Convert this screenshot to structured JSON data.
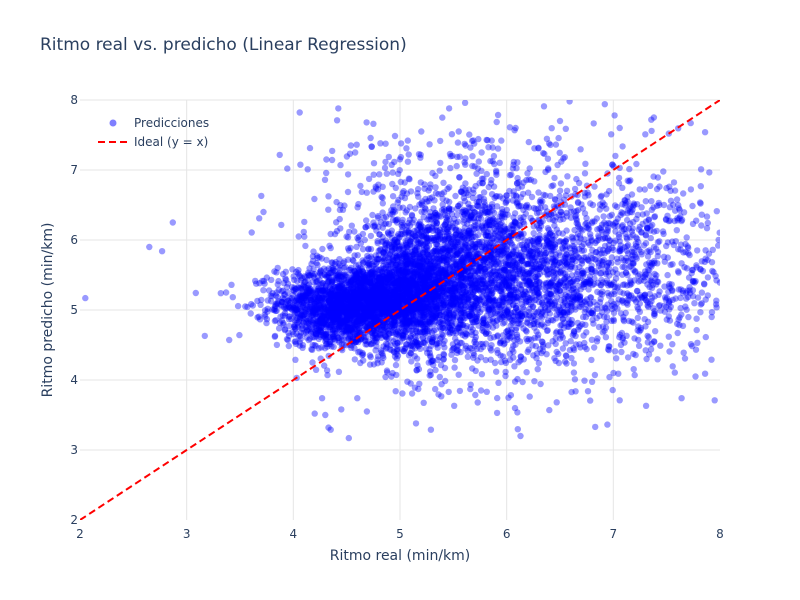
{
  "chart_data": {
    "type": "scatter",
    "title": "Ritmo real vs. predicho (Linear Regression)",
    "xlabel": "Ritmo real (min/km)",
    "ylabel": "Ritmo predicho (min/km)",
    "xlim": [
      2,
      8
    ],
    "ylim": [
      2,
      8
    ],
    "x_ticks": [
      "2",
      "3",
      "4",
      "5",
      "6",
      "7",
      "8"
    ],
    "y_ticks": [
      "2",
      "3",
      "4",
      "5",
      "6",
      "7",
      "8"
    ],
    "grid": true,
    "legend_position": "top-left",
    "series": [
      {
        "name": "Predicciones",
        "kind": "markers",
        "color": "#0000ff",
        "opacity": 0.4,
        "points": [
          [
            2.05,
            5.17
          ],
          [
            2.65,
            5.9
          ],
          [
            2.77,
            5.84
          ],
          [
            2.87,
            6.25
          ],
          [
            3.17,
            4.63
          ],
          [
            3.32,
            5.24
          ],
          [
            3.37,
            5.25
          ],
          [
            3.42,
            5.36
          ],
          [
            3.55,
            5.05
          ],
          [
            3.6,
            4.95
          ],
          [
            3.68,
            6.31
          ],
          [
            3.7,
            6.63
          ],
          [
            3.72,
            6.4
          ],
          [
            3.96,
            4.63
          ],
          [
            4.05,
            6.05
          ],
          [
            4.18,
            4.25
          ],
          [
            4.2,
            3.52
          ],
          [
            4.27,
            3.74
          ],
          [
            4.31,
            7.15
          ],
          [
            4.32,
            4.07
          ],
          [
            4.3,
            3.5
          ],
          [
            4.33,
            3.32
          ],
          [
            4.35,
            3.29
          ],
          [
            4.41,
            7.71
          ],
          [
            4.45,
            3.58
          ],
          [
            4.52,
            3.17
          ],
          [
            4.54,
            7.35
          ],
          [
            4.58,
            7.25
          ],
          [
            4.6,
            3.74
          ],
          [
            4.69,
            3.55
          ],
          [
            4.72,
            4.22
          ],
          [
            4.79,
            4.24
          ],
          [
            4.88,
            4.11
          ],
          [
            4.96,
            3.84
          ],
          [
            5.01,
            7.38
          ],
          [
            5.06,
            7.31
          ],
          [
            5.1,
            3.95
          ],
          [
            5.14,
            3.89
          ],
          [
            5.15,
            3.38
          ],
          [
            5.2,
            7.55
          ],
          [
            5.29,
            3.29
          ],
          [
            5.33,
            3.87
          ],
          [
            5.39,
            3.94
          ],
          [
            5.46,
            7.88
          ],
          [
            5.55,
            7.55
          ],
          [
            5.61,
            7.96
          ],
          [
            5.66,
            7.32
          ],
          [
            5.71,
            4.13
          ],
          [
            5.76,
            3.85
          ],
          [
            5.86,
            7.42
          ],
          [
            5.91,
            3.53
          ],
          [
            5.95,
            7.42
          ],
          [
            6.03,
            7.61
          ],
          [
            6.13,
            3.2
          ],
          [
            6.26,
            7.31
          ],
          [
            6.35,
            7.91
          ],
          [
            6.4,
            3.57
          ],
          [
            6.5,
            7.7
          ],
          [
            6.59,
            7.98
          ],
          [
            6.64,
            4.01
          ],
          [
            6.73,
            3.99
          ],
          [
            6.83,
            3.33
          ],
          [
            6.92,
            7.94
          ],
          [
            6.98,
            7.51
          ],
          [
            7.06,
            7.6
          ],
          [
            7.2,
            4.07
          ],
          [
            7.3,
            7.51
          ],
          [
            7.38,
            7.75
          ],
          [
            7.44,
            4.49
          ],
          [
            7.52,
            7.52
          ],
          [
            7.64,
            3.74
          ],
          [
            7.77,
            4.05
          ],
          [
            7.86,
            7.54
          ],
          [
            7.92,
            4.29
          ],
          [
            7.95,
            3.71
          ]
        ],
        "clusters": [
          {
            "cx": 4.62,
            "cy": 5.12,
            "sx": 0.38,
            "sy": 0.26,
            "n": 2000
          },
          {
            "cx": 5.15,
            "cy": 5.32,
            "sx": 0.35,
            "sy": 0.48,
            "n": 1500
          },
          {
            "cx": 5.75,
            "cy": 5.52,
            "sx": 0.45,
            "sy": 0.62,
            "n": 1500
          },
          {
            "cx": 6.45,
            "cy": 5.42,
            "sx": 0.5,
            "sy": 0.6,
            "n": 900
          },
          {
            "cx": 7.35,
            "cy": 5.7,
            "sx": 0.4,
            "sy": 0.72,
            "n": 500
          },
          {
            "cx": 5.6,
            "cy": 6.6,
            "sx": 0.75,
            "sy": 0.55,
            "n": 350
          },
          {
            "cx": 4.4,
            "cy": 4.8,
            "sx": 0.2,
            "sy": 0.2,
            "n": 300
          }
        ]
      },
      {
        "name": "Ideal (y = x)",
        "kind": "line",
        "color": "#ff0000",
        "dash": "dashed",
        "points": [
          [
            2,
            2
          ],
          [
            8,
            8
          ]
        ]
      }
    ]
  }
}
